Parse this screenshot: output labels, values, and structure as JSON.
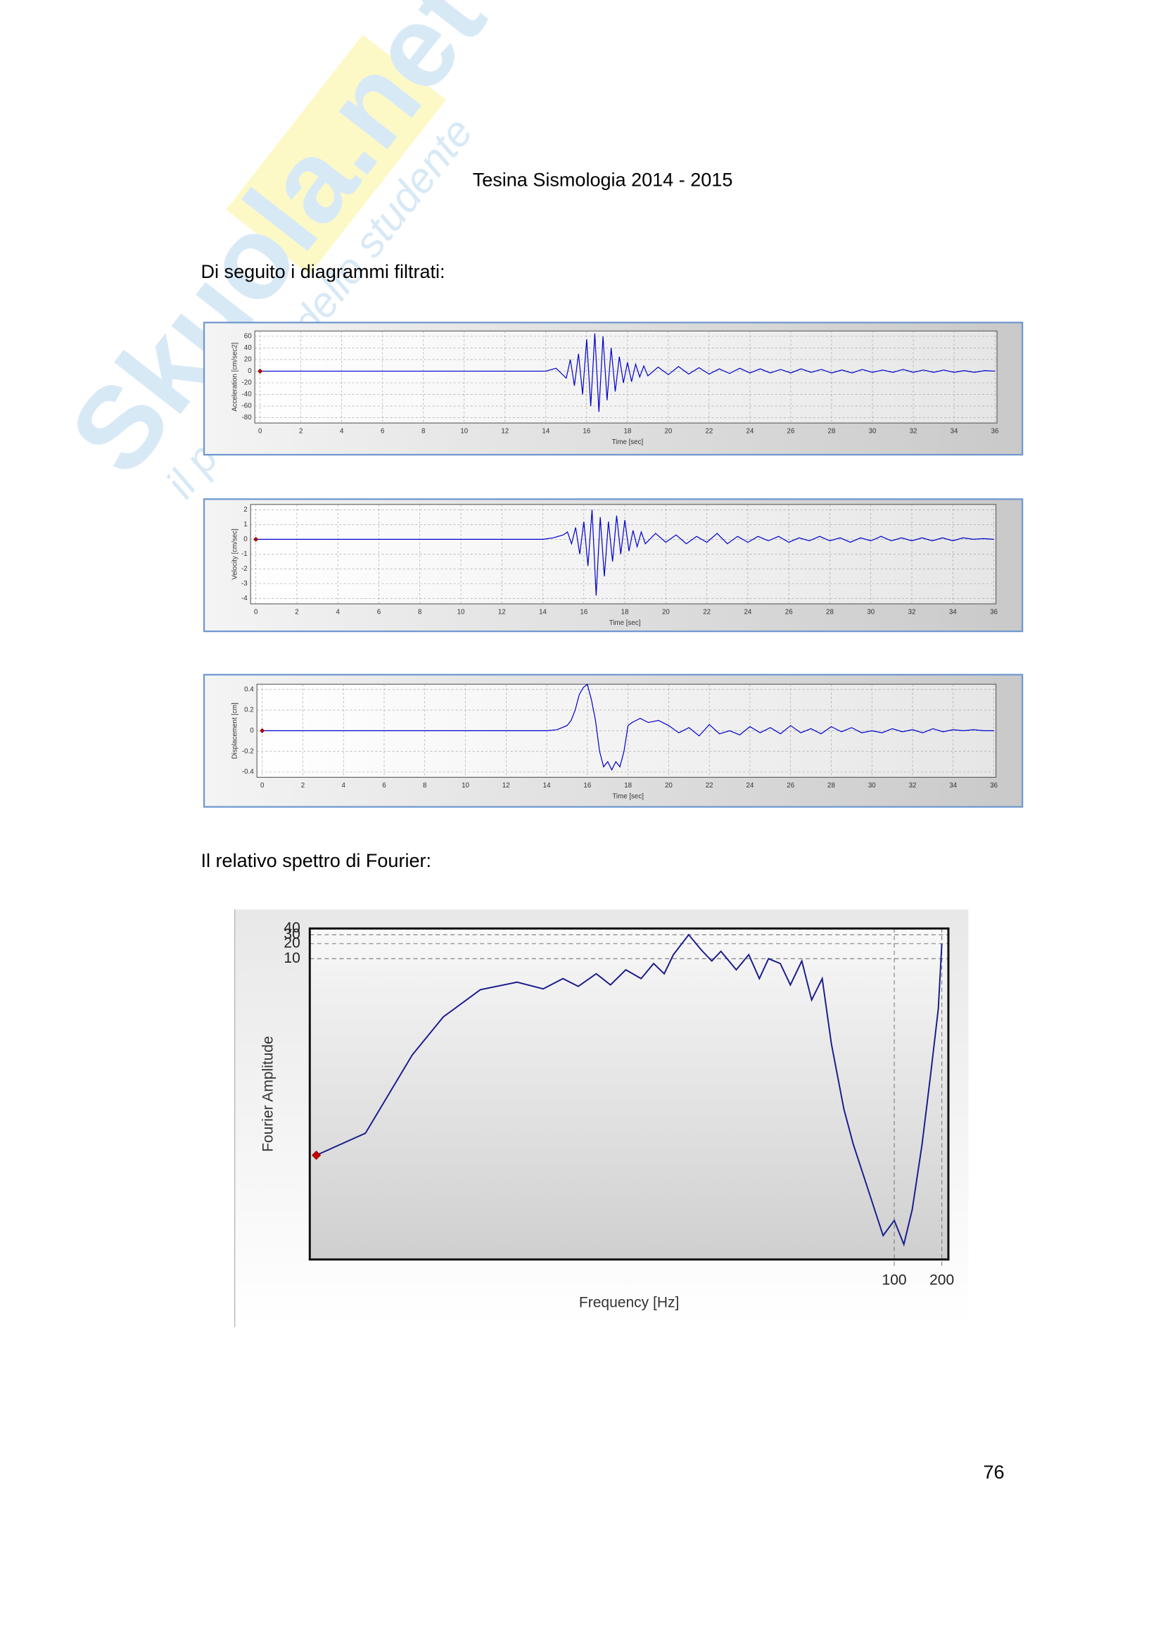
{
  "watermark": {
    "brand": "Skuola.net",
    "tagline": "il paradiso dello studente"
  },
  "header": {
    "title": "Tesina Sismologia 2014 - 2015"
  },
  "intro_text": "Di seguito i diagrammi filtrati:",
  "fourier_intro": "Il relativo spettro di Fourier:",
  "page_number": "76",
  "chart_data": [
    {
      "type": "line",
      "y_label": "Acceleration [cm/sec2]",
      "x_label": "Time [sec]",
      "x": [
        0,
        14,
        14.5,
        15,
        15.2,
        15.4,
        15.6,
        15.8,
        16,
        16.2,
        16.4,
        16.6,
        16.8,
        17,
        17.2,
        17.4,
        17.6,
        17.8,
        18,
        18.2,
        18.4,
        18.6,
        18.8,
        19,
        19.5,
        20,
        20.5,
        21,
        21.5,
        22,
        22.5,
        23,
        23.5,
        24,
        24.5,
        25,
        25.5,
        26,
        26.5,
        27,
        27.5,
        28,
        28.5,
        29,
        29.5,
        30,
        30.5,
        31,
        31.5,
        32,
        32.5,
        33,
        33.5,
        34,
        34.5,
        35,
        35.5,
        36
      ],
      "series": [
        {
          "color": "#0000cc",
          "values": [
            0,
            0,
            5,
            -12,
            20,
            -25,
            30,
            -40,
            55,
            -60,
            65,
            -70,
            60,
            -50,
            40,
            -35,
            25,
            -20,
            15,
            -18,
            12,
            -10,
            9,
            -8,
            7,
            -6,
            8,
            -5,
            6,
            -5,
            4,
            -4,
            5,
            -3,
            4,
            -3,
            3,
            -3,
            4,
            -2,
            3,
            -3,
            2,
            -3,
            3,
            -2,
            2,
            -2,
            3,
            -2,
            2,
            -2,
            2,
            -2,
            1,
            -2,
            1,
            0
          ]
        }
      ],
      "marker_color": "#cc0000",
      "xlim": [
        0,
        36
      ],
      "xticks": [
        0,
        2,
        4,
        6,
        8,
        10,
        12,
        14,
        16,
        18,
        20,
        22,
        24,
        26,
        28,
        30,
        32,
        34,
        36
      ],
      "ylim": [
        -80,
        60
      ],
      "yticks": [
        -80,
        -60,
        -40,
        -20,
        0,
        20,
        40,
        60
      ],
      "grid": true
    },
    {
      "type": "line",
      "y_label": "Velocity [cm/sec]",
      "x_label": "Time [sec]",
      "x": [
        0,
        14,
        14.5,
        15,
        15.2,
        15.4,
        15.6,
        15.8,
        16,
        16.2,
        16.4,
        16.6,
        16.8,
        17,
        17.2,
        17.4,
        17.6,
        17.8,
        18,
        18.2,
        18.4,
        18.6,
        18.8,
        19,
        19.5,
        20,
        20.5,
        21,
        21.5,
        22,
        22.5,
        23,
        23.5,
        24,
        24.5,
        25,
        25.5,
        26,
        26.5,
        27,
        27.5,
        28,
        28.5,
        29,
        29.5,
        30,
        30.5,
        31,
        31.5,
        32,
        32.5,
        33,
        33.5,
        34,
        34.5,
        35,
        35.5,
        36
      ],
      "series": [
        {
          "color": "#0000cc",
          "values": [
            0,
            0,
            0.1,
            0.3,
            0.5,
            -0.3,
            0.8,
            -1,
            1.2,
            -1.8,
            2,
            -3.8,
            1.5,
            -2.5,
            1.2,
            -1.5,
            1.6,
            -1,
            1.3,
            -0.8,
            0.6,
            -0.5,
            0.5,
            -0.3,
            0.4,
            -0.2,
            0.3,
            -0.3,
            0.2,
            -0.2,
            0.4,
            -0.3,
            0.2,
            -0.2,
            0.2,
            -0.1,
            0.2,
            -0.2,
            0.1,
            -0.1,
            0.2,
            -0.1,
            0.1,
            -0.2,
            0.1,
            -0.1,
            0.2,
            -0.1,
            0.1,
            -0.1,
            0.1,
            -0.1,
            0.1,
            -0.1,
            0.1,
            0,
            0.05,
            0
          ]
        }
      ],
      "marker_color": "#cc0000",
      "xlim": [
        0,
        36
      ],
      "xticks": [
        0,
        2,
        4,
        6,
        8,
        10,
        12,
        14,
        16,
        18,
        20,
        22,
        24,
        26,
        28,
        30,
        32,
        34,
        36
      ],
      "ylim": [
        -4,
        2
      ],
      "yticks": [
        -4,
        -3,
        -2,
        -1,
        0,
        1,
        2
      ],
      "grid": true
    },
    {
      "type": "line",
      "y_label": "Displacement [cm]",
      "x_label": "Time [sec]",
      "x": [
        0,
        14,
        14.5,
        15,
        15.2,
        15.4,
        15.6,
        15.8,
        16,
        16.2,
        16.4,
        16.6,
        16.8,
        17,
        17.2,
        17.4,
        17.6,
        17.8,
        18,
        18.2,
        18.4,
        18.6,
        18.8,
        19,
        19.5,
        20,
        20.5,
        21,
        21.5,
        22,
        22.5,
        23,
        23.5,
        24,
        24.5,
        25,
        25.5,
        26,
        26.5,
        27,
        27.5,
        28,
        28.5,
        29,
        29.5,
        30,
        30.5,
        31,
        31.5,
        32,
        32.5,
        33,
        33.5,
        34,
        34.5,
        35,
        35.5,
        36
      ],
      "series": [
        {
          "color": "#0000cc",
          "values": [
            0,
            0,
            0.01,
            0.05,
            0.1,
            0.2,
            0.35,
            0.42,
            0.45,
            0.3,
            0.1,
            -0.2,
            -0.35,
            -0.3,
            -0.38,
            -0.3,
            -0.35,
            -0.2,
            0.05,
            0.08,
            0.1,
            0.12,
            0.1,
            0.08,
            0.1,
            0.05,
            -0.02,
            0.03,
            -0.05,
            0.06,
            -0.03,
            0,
            -0.04,
            0.04,
            -0.02,
            0.03,
            -0.03,
            0.05,
            -0.02,
            0.02,
            -0.03,
            0.04,
            -0.01,
            0.03,
            -0.02,
            0,
            -0.02,
            0.02,
            -0.01,
            0.01,
            -0.02,
            0.02,
            -0.01,
            0.01,
            0,
            0.01,
            0,
            0
          ]
        }
      ],
      "marker_color": "#cc0000",
      "xlim": [
        0,
        36
      ],
      "xticks": [
        0,
        2,
        4,
        6,
        8,
        10,
        12,
        14,
        16,
        18,
        20,
        22,
        24,
        26,
        28,
        30,
        32,
        34,
        36
      ],
      "ylim": [
        -0.4,
        0.4
      ],
      "yticks": [
        -0.4,
        -0.2,
        0,
        0.2,
        0.4
      ],
      "grid": true
    },
    {
      "type": "spectrum",
      "y_label": "Fourier Amplitude",
      "x_label": "Frequency [Hz]",
      "x": [
        0.022,
        0.045,
        0.089,
        0.14,
        0.24,
        0.41,
        0.6,
        0.8,
        1,
        1.3,
        1.6,
        2,
        2.5,
        3,
        3.5,
        4,
        5,
        6,
        7,
        8,
        10,
        12,
        14,
        16,
        19,
        22,
        26,
        30,
        35,
        40,
        48,
        55,
        65,
        75,
        85,
        100,
        115,
        130,
        150,
        170,
        190,
        200
      ],
      "series": [
        {
          "color": "#1a1a8c",
          "values": [
            0.0012,
            0.0033,
            0.12,
            0.69,
            2.4,
            3.4,
            2.5,
            4,
            2.8,
            5,
            3,
            6,
            4,
            8,
            5,
            12,
            30,
            15,
            9,
            14,
            6,
            12,
            4,
            10,
            8,
            3,
            9,
            1.5,
            4,
            0.2,
            0.01,
            0.002,
            0.0004,
            0.0001,
            3e-05,
            6e-05,
            2e-05,
            0.0001,
            0.002,
            0.05,
            1,
            20
          ]
        }
      ],
      "marker_color": "#cc0000",
      "log_x": true,
      "log_y": true,
      "xlim": [
        0.02,
        220
      ],
      "xticks": [
        100,
        200
      ],
      "ylim": [
        1e-05,
        40
      ],
      "yticks": [
        10,
        20,
        30,
        40
      ],
      "grid": true
    }
  ]
}
